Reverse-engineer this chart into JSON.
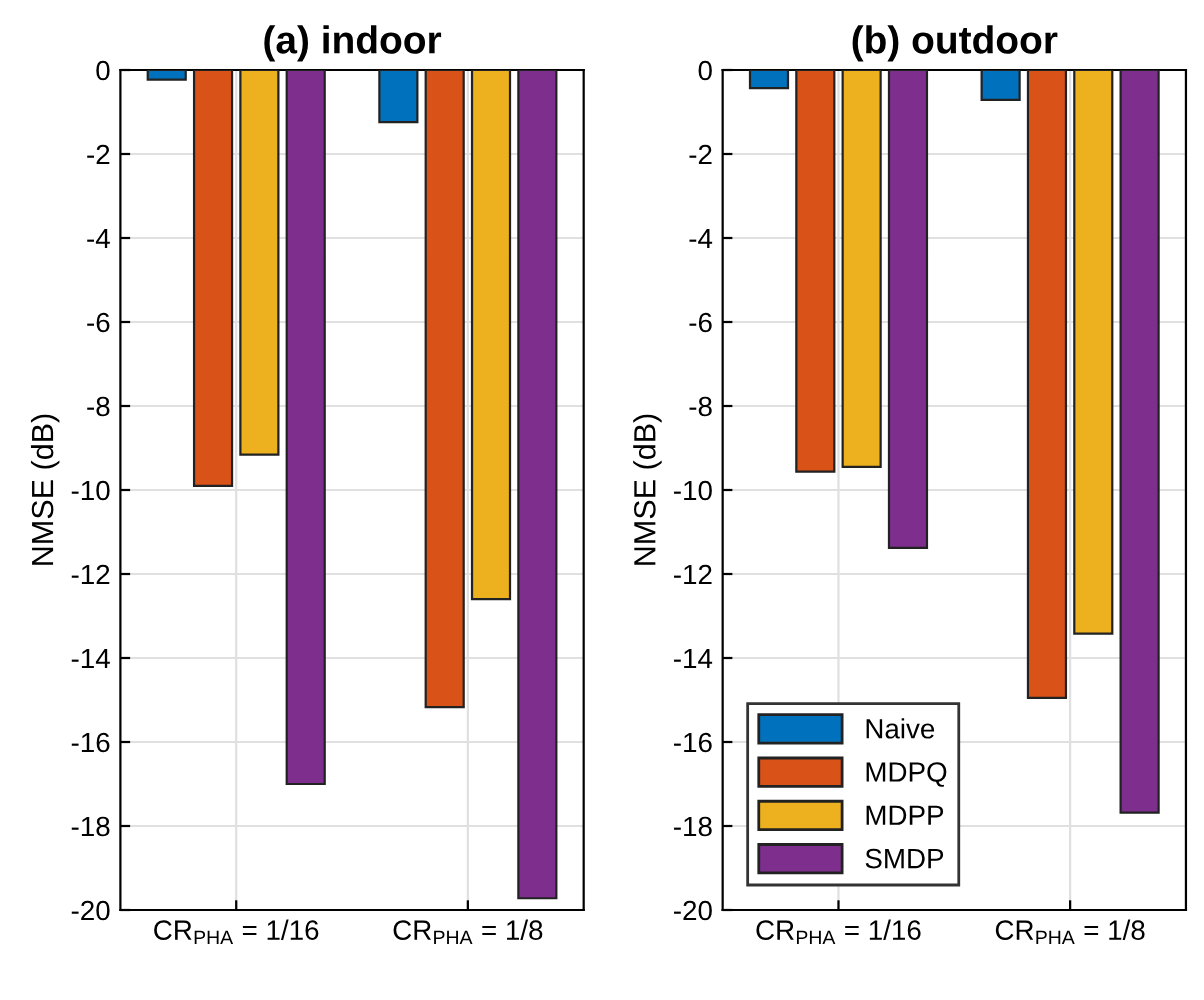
{
  "chart_data": [
    {
      "type": "bar",
      "title": "(a) indoor",
      "ylabel": "NMSE (dB)",
      "categories": [
        "CR$_{PHA}$ = 1/16",
        "CR$_{PHA}$ = 1/8"
      ],
      "ylim": [
        -20,
        0
      ],
      "yticks": [
        -20,
        -18,
        -16,
        -14,
        -12,
        -10,
        -8,
        -6,
        -4,
        -2,
        0
      ],
      "grid": true,
      "series": [
        {
          "color": "#0072bd",
          "values": [
            -0.23,
            -1.24
          ]
        },
        {
          "color": "#d95319",
          "values": [
            -9.9,
            -15.17
          ]
        },
        {
          "color": "#edb120",
          "values": [
            -9.16,
            -12.6
          ]
        },
        {
          "color": "#7e2f8e",
          "values": [
            -17.0,
            -19.72
          ]
        }
      ]
    },
    {
      "type": "bar",
      "title": "(b) outdoor",
      "ylabel": "NMSE (dB)",
      "categories": [
        "CR$_{PHA}$ = 1/16",
        "CR$_{PHA}$ = 1/8"
      ],
      "ylim": [
        -20,
        0
      ],
      "yticks": [
        -20,
        -18,
        -16,
        -14,
        -12,
        -10,
        -8,
        -6,
        -4,
        -2,
        0
      ],
      "grid": true,
      "legend": "bottom left",
      "series": [
        {
          "name": "Naive",
          "color": "#0072bd",
          "values": [
            -0.43,
            -0.71
          ]
        },
        {
          "name": "MDPQ",
          "color": "#d95319",
          "values": [
            -9.56,
            -14.95
          ]
        },
        {
          "name": "MDPP",
          "color": "#edb120",
          "values": [
            -9.45,
            -13.42
          ]
        },
        {
          "name": "SMDP",
          "color": "#7e2f8e",
          "values": [
            -11.38,
            -17.68
          ]
        }
      ]
    }
  ]
}
